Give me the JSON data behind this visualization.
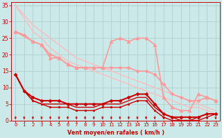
{
  "bg_color": "#cbe9e9",
  "grid_color": "#aacccc",
  "xlabel": "Vent moyen/en rafales ( km/h )",
  "xlabel_color": "#cc0000",
  "tick_color": "#cc0000",
  "arrow_color": "#cc0000",
  "xlim": [
    -0.5,
    23.5
  ],
  "ylim": [
    0,
    36
  ],
  "yticks": [
    0,
    5,
    10,
    15,
    20,
    25,
    30,
    35
  ],
  "xticks": [
    0,
    1,
    2,
    3,
    4,
    5,
    6,
    7,
    8,
    9,
    10,
    11,
    12,
    13,
    14,
    15,
    16,
    17,
    18,
    19,
    20,
    21,
    22,
    23
  ],
  "series": [
    {
      "x": [
        0,
        1,
        2,
        3,
        4,
        5,
        6,
        7,
        8,
        9,
        10,
        11,
        12,
        13,
        14,
        15,
        16,
        17,
        18,
        19,
        20,
        21,
        22,
        23
      ],
      "y": [
        35,
        32,
        29,
        27,
        25,
        23,
        21,
        19,
        18,
        17,
        16,
        15,
        14,
        13,
        12,
        11,
        10,
        9,
        8,
        7,
        6,
        5,
        4,
        3
      ],
      "color": "#ffbbbb",
      "lw": 1.0,
      "marker": null
    },
    {
      "x": [
        0,
        1,
        2,
        3,
        4,
        5,
        6,
        7,
        8,
        9,
        10,
        11,
        12,
        13,
        14,
        15,
        16,
        17,
        18,
        19,
        20,
        21,
        22,
        23
      ],
      "y": [
        35,
        31,
        27,
        25,
        22,
        20,
        18,
        17,
        16,
        15,
        14,
        13,
        12,
        11,
        10,
        9,
        8,
        7,
        6,
        5,
        4,
        4,
        3,
        2
      ],
      "color": "#ffbbbb",
      "lw": 1.0,
      "marker": null
    },
    {
      "x": [
        0,
        1,
        2,
        3,
        4,
        5,
        6,
        7,
        8,
        9,
        10,
        11,
        12,
        13,
        14,
        15,
        16,
        17,
        18,
        19,
        20,
        21,
        22,
        23
      ],
      "y": [
        27,
        26,
        24,
        23,
        20,
        19,
        17,
        16,
        16,
        16,
        16,
        16,
        16,
        16,
        15,
        15,
        14,
        11,
        8,
        7,
        6,
        6,
        7,
        6
      ],
      "color": "#ff9999",
      "lw": 1.2,
      "marker": "D",
      "ms": 2.5
    },
    {
      "x": [
        0,
        2,
        3,
        4,
        5,
        6,
        7,
        8,
        9,
        10,
        11,
        12,
        13,
        14,
        15,
        16,
        17,
        18,
        19,
        20,
        21,
        22,
        23
      ],
      "y": [
        27,
        24,
        23,
        19,
        19,
        17,
        16,
        16,
        16,
        16,
        24,
        25,
        24,
        25,
        25,
        23,
        7,
        4,
        3,
        3,
        8,
        7,
        6
      ],
      "color": "#ff9999",
      "lw": 1.2,
      "marker": "^",
      "ms": 3.5
    },
    {
      "x": [
        0,
        1,
        2,
        3,
        4,
        5,
        6,
        7,
        8,
        9,
        10,
        11,
        12,
        13,
        14,
        15,
        16,
        17,
        18,
        19,
        20,
        21,
        22,
        23
      ],
      "y": [
        14,
        9,
        7,
        6,
        6,
        6,
        5,
        5,
        5,
        5,
        5,
        6,
        6,
        7,
        8,
        8,
        5,
        2,
        1,
        1,
        1,
        1,
        2,
        2
      ],
      "color": "#cc0000",
      "lw": 1.5,
      "marker": "D",
      "ms": 2.5
    },
    {
      "x": [
        0,
        1,
        2,
        3,
        4,
        5,
        6,
        7,
        8,
        9,
        10,
        11,
        12,
        13,
        14,
        15,
        16,
        17,
        18,
        19,
        20,
        21,
        22,
        23
      ],
      "y": [
        14,
        9,
        6,
        5,
        5,
        5,
        5,
        4,
        4,
        4,
        5,
        5,
        5,
        6,
        7,
        7,
        4,
        2,
        1,
        0,
        0,
        1,
        2,
        2
      ],
      "color": "#cc0000",
      "lw": 1.0,
      "marker": null
    },
    {
      "x": [
        0,
        1,
        2,
        3,
        4,
        5,
        6,
        7,
        8,
        9,
        10,
        11,
        12,
        13,
        14,
        15,
        16,
        17,
        18,
        19,
        20,
        21,
        22,
        23
      ],
      "y": [
        14,
        9,
        6,
        5,
        4,
        4,
        4,
        3,
        3,
        3,
        4,
        4,
        4,
        5,
        6,
        6,
        3,
        1,
        0,
        0,
        0,
        0,
        1,
        2
      ],
      "color": "#cc0000",
      "lw": 1.0,
      "marker": "s",
      "ms": 1.8
    }
  ],
  "arrows_x": [
    0,
    1,
    2,
    3,
    4,
    5,
    6,
    7,
    8,
    9,
    10,
    11,
    12,
    13,
    14,
    15,
    16,
    17,
    18,
    19,
    20,
    21,
    22,
    23
  ]
}
